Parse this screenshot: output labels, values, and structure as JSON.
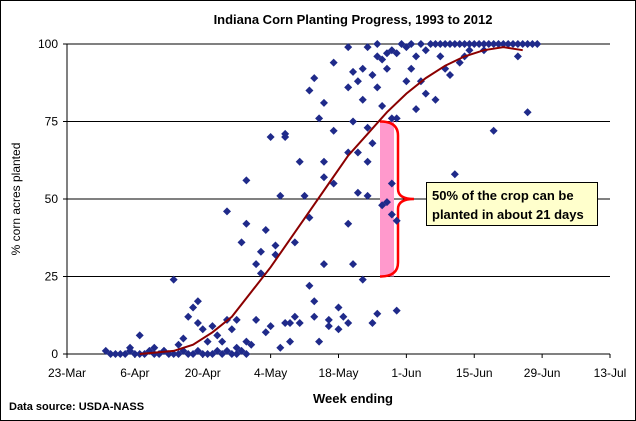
{
  "chart_data": {
    "type": "scatter",
    "title": "Indiana Corn Planting Progress, 1993 to 2012",
    "xlabel": "Week ending",
    "ylabel": "% corn acres planted",
    "source": "Data source: USDA-NASS",
    "x_tick_labels": [
      "23-Mar",
      "6-Apr",
      "20-Apr",
      "4-May",
      "18-May",
      "1-Jun",
      "15-Jun",
      "29-Jun",
      "13-Jul"
    ],
    "y_tick_labels": [
      "0",
      "25",
      "50",
      "75",
      "100"
    ],
    "xlim": [
      "23-Mar",
      "13-Jul"
    ],
    "ylim": [
      0,
      100
    ],
    "grid": "horizontal",
    "colors": {
      "points": "#1f2a8a",
      "trend": "#8b0000",
      "bracket_fill": "#ff99cc",
      "bracket_line": "#ff0000",
      "annotation_bg": "#ffffcc"
    },
    "annotation": {
      "line1": "50% of the crop can be",
      "line2": "planted in about 21 days",
      "bracket_from": 25,
      "bracket_to": 75
    },
    "series": [
      {
        "type": "scatter",
        "points": [
          [
            "31-Mar",
            1
          ],
          [
            "1-Apr",
            0
          ],
          [
            "2-Apr",
            0
          ],
          [
            "3-Apr",
            0
          ],
          [
            "4-Apr",
            0
          ],
          [
            "5-Apr",
            1
          ],
          [
            "6-Apr",
            0
          ],
          [
            "7-Apr",
            0
          ],
          [
            "8-Apr",
            0
          ],
          [
            "9-Apr",
            1
          ],
          [
            "10-Apr",
            0
          ],
          [
            "11-Apr",
            0
          ],
          [
            "12-Apr",
            1
          ],
          [
            "13-Apr",
            0
          ],
          [
            "14-Apr",
            0
          ],
          [
            "15-Apr",
            0
          ],
          [
            "16-Apr",
            1
          ],
          [
            "17-Apr",
            0
          ],
          [
            "18-Apr",
            0
          ],
          [
            "19-Apr",
            1
          ],
          [
            "20-Apr",
            0
          ],
          [
            "21-Apr",
            0
          ],
          [
            "22-Apr",
            0
          ],
          [
            "23-Apr",
            1
          ],
          [
            "24-Apr",
            0
          ],
          [
            "25-Apr",
            1
          ],
          [
            "26-Apr",
            0
          ],
          [
            "27-Apr",
            0
          ],
          [
            "28-Apr",
            1
          ],
          [
            "29-Apr",
            0
          ],
          [
            "5-Apr",
            2
          ],
          [
            "7-Apr",
            6
          ],
          [
            "10-Apr",
            2
          ],
          [
            "12-Apr",
            1
          ],
          [
            "14-Apr",
            24
          ],
          [
            "15-Apr",
            3
          ],
          [
            "16-Apr",
            5
          ],
          [
            "17-Apr",
            12
          ],
          [
            "18-Apr",
            15
          ],
          [
            "19-Apr",
            17
          ],
          [
            "19-Apr",
            10
          ],
          [
            "20-Apr",
            8
          ],
          [
            "21-Apr",
            4
          ],
          [
            "22-Apr",
            9
          ],
          [
            "23-Apr",
            6
          ],
          [
            "24-Apr",
            4
          ],
          [
            "25-Apr",
            11
          ],
          [
            "25-Apr",
            46
          ],
          [
            "26-Apr",
            8
          ],
          [
            "27-Apr",
            11
          ],
          [
            "27-Apr",
            2
          ],
          [
            "28-Apr",
            36
          ],
          [
            "29-Apr",
            42
          ],
          [
            "29-Apr",
            56
          ],
          [
            "29-Apr",
            4
          ],
          [
            "30-Apr",
            3
          ],
          [
            "1-May",
            29
          ],
          [
            "1-May",
            11
          ],
          [
            "2-May",
            26
          ],
          [
            "2-May",
            33
          ],
          [
            "3-May",
            7
          ],
          [
            "3-May",
            40
          ],
          [
            "4-May",
            70
          ],
          [
            "4-May",
            9
          ],
          [
            "5-May",
            32
          ],
          [
            "5-May",
            35
          ],
          [
            "6-May",
            51
          ],
          [
            "6-May",
            2
          ],
          [
            "7-May",
            10
          ],
          [
            "7-May",
            70
          ],
          [
            "7-May",
            71
          ],
          [
            "8-May",
            4
          ],
          [
            "8-May",
            10
          ],
          [
            "9-May",
            36
          ],
          [
            "9-May",
            12
          ],
          [
            "10-May",
            62
          ],
          [
            "10-May",
            10
          ],
          [
            "11-May",
            51
          ],
          [
            "12-May",
            22
          ],
          [
            "12-May",
            85
          ],
          [
            "12-May",
            44
          ],
          [
            "13-May",
            12
          ],
          [
            "13-May",
            89
          ],
          [
            "13-May",
            17
          ],
          [
            "14-May",
            76
          ],
          [
            "14-May",
            4
          ],
          [
            "15-May",
            62
          ],
          [
            "15-May",
            81
          ],
          [
            "15-May",
            57
          ],
          [
            "15-May",
            29
          ],
          [
            "16-May",
            11
          ],
          [
            "16-May",
            9
          ],
          [
            "17-May",
            55
          ],
          [
            "17-May",
            72
          ],
          [
            "17-May",
            94
          ],
          [
            "18-May",
            8
          ],
          [
            "18-May",
            15
          ],
          [
            "19-May",
            12
          ],
          [
            "20-May",
            99
          ],
          [
            "20-May",
            86
          ],
          [
            "20-May",
            65
          ],
          [
            "20-May",
            42
          ],
          [
            "20-May",
            10
          ],
          [
            "21-May",
            75
          ],
          [
            "21-May",
            91
          ],
          [
            "21-May",
            29
          ],
          [
            "22-May",
            88
          ],
          [
            "22-May",
            65
          ],
          [
            "22-May",
            52
          ],
          [
            "23-May",
            92
          ],
          [
            "23-May",
            82
          ],
          [
            "23-May",
            24
          ],
          [
            "24-May",
            99
          ],
          [
            "24-May",
            73
          ],
          [
            "24-May",
            62
          ],
          [
            "24-May",
            51
          ],
          [
            "25-May",
            68
          ],
          [
            "25-May",
            90
          ],
          [
            "25-May",
            10
          ],
          [
            "26-May",
            100
          ],
          [
            "26-May",
            96
          ],
          [
            "26-May",
            86
          ],
          [
            "26-May",
            13
          ],
          [
            "27-May",
            95
          ],
          [
            "27-May",
            80
          ],
          [
            "27-May",
            48
          ],
          [
            "28-May",
            97
          ],
          [
            "28-May",
            92
          ],
          [
            "28-May",
            49
          ],
          [
            "29-May",
            98
          ],
          [
            "29-May",
            76
          ],
          [
            "29-May",
            55
          ],
          [
            "29-May",
            45
          ],
          [
            "30-May",
            97
          ],
          [
            "30-May",
            76
          ],
          [
            "30-May",
            14
          ],
          [
            "30-May",
            43
          ],
          [
            "31-May",
            100
          ],
          [
            "1-Jun",
            99
          ],
          [
            "1-Jun",
            88
          ],
          [
            "2-Jun",
            100
          ],
          [
            "2-Jun",
            92
          ],
          [
            "3-Jun",
            96
          ],
          [
            "3-Jun",
            79
          ],
          [
            "4-Jun",
            100
          ],
          [
            "4-Jun",
            88
          ],
          [
            "5-Jun",
            98
          ],
          [
            "5-Jun",
            84
          ],
          [
            "6-Jun",
            100
          ],
          [
            "6-Jun",
            45
          ],
          [
            "7-Jun",
            100
          ],
          [
            "7-Jun",
            82
          ],
          [
            "8-Jun",
            100
          ],
          [
            "8-Jun",
            96
          ],
          [
            "9-Jun",
            100
          ],
          [
            "9-Jun",
            92
          ],
          [
            "10-Jun",
            100
          ],
          [
            "10-Jun",
            90
          ],
          [
            "11-Jun",
            100
          ],
          [
            "11-Jun",
            58
          ],
          [
            "12-Jun",
            100
          ],
          [
            "12-Jun",
            94
          ],
          [
            "13-Jun",
            100
          ],
          [
            "13-Jun",
            96
          ],
          [
            "14-Jun",
            100
          ],
          [
            "14-Jun",
            98
          ],
          [
            "15-Jun",
            100
          ],
          [
            "16-Jun",
            100
          ],
          [
            "17-Jun",
            100
          ],
          [
            "17-Jun",
            98
          ],
          [
            "18-Jun",
            100
          ],
          [
            "19-Jun",
            100
          ],
          [
            "19-Jun",
            72
          ],
          [
            "20-Jun",
            100
          ],
          [
            "21-Jun",
            100
          ],
          [
            "22-Jun",
            100
          ],
          [
            "23-Jun",
            100
          ],
          [
            "24-Jun",
            100
          ],
          [
            "24-Jun",
            96
          ],
          [
            "25-Jun",
            100
          ],
          [
            "26-Jun",
            100
          ],
          [
            "26-Jun",
            78
          ],
          [
            "27-Jun",
            100
          ],
          [
            "28-Jun",
            100
          ]
        ]
      },
      {
        "type": "line",
        "points": [
          [
            "7-Apr",
            0
          ],
          [
            "14-Apr",
            1
          ],
          [
            "18-Apr",
            3
          ],
          [
            "22-Apr",
            7
          ],
          [
            "26-Apr",
            12
          ],
          [
            "30-Apr",
            20
          ],
          [
            "4-May",
            28
          ],
          [
            "8-May",
            37
          ],
          [
            "12-May",
            46
          ],
          [
            "16-May",
            55
          ],
          [
            "20-May",
            64
          ],
          [
            "24-May",
            71
          ],
          [
            "28-May",
            78
          ],
          [
            "1-Jun",
            84
          ],
          [
            "5-Jun",
            89
          ],
          [
            "9-Jun",
            93
          ],
          [
            "13-Jun",
            96
          ],
          [
            "17-Jun",
            98
          ],
          [
            "21-Jun",
            99
          ],
          [
            "25-Jun",
            98
          ]
        ]
      }
    ]
  }
}
